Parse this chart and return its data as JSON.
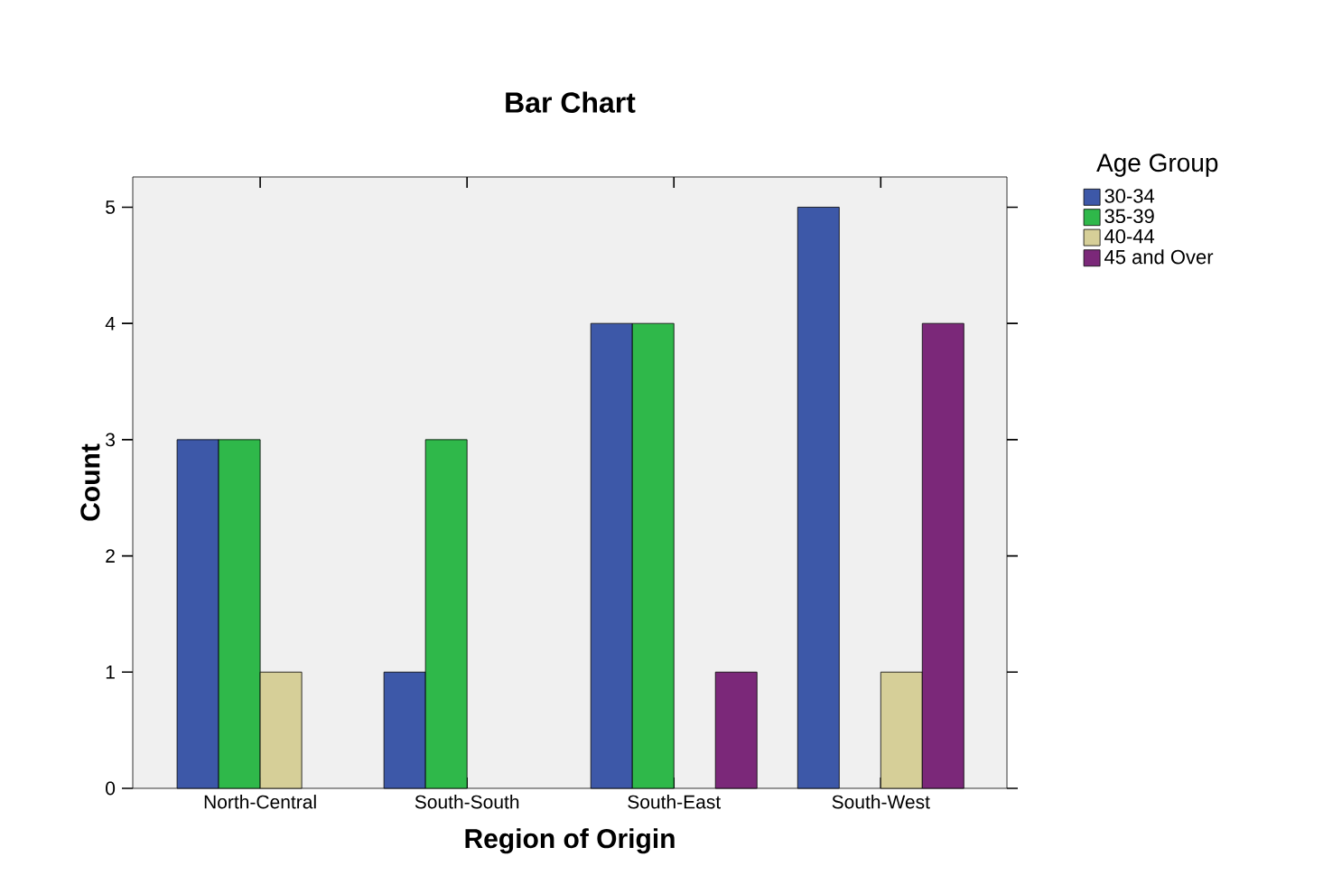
{
  "chart_data": {
    "type": "bar",
    "title": "Bar Chart",
    "xlabel": "Region of Origin",
    "ylabel": "Count",
    "legend_title": "Age Group",
    "categories": [
      "North-Central",
      "South-South",
      "South-East",
      "South-West"
    ],
    "series": [
      {
        "name": "30-34",
        "color": "#3d58a8",
        "values": [
          3,
          1,
          4,
          5
        ]
      },
      {
        "name": "35-39",
        "color": "#2fb84a",
        "values": [
          3,
          3,
          4,
          null
        ]
      },
      {
        "name": "40-44",
        "color": "#d6cf98",
        "values": [
          1,
          null,
          null,
          1
        ]
      },
      {
        "name": "45 and Over",
        "color": "#7b2879",
        "values": [
          null,
          null,
          1,
          4
        ]
      }
    ],
    "ylim": [
      0,
      5.26
    ],
    "yticks": [
      0,
      1,
      2,
      3,
      4,
      5
    ],
    "grid": false,
    "legend": "right"
  }
}
